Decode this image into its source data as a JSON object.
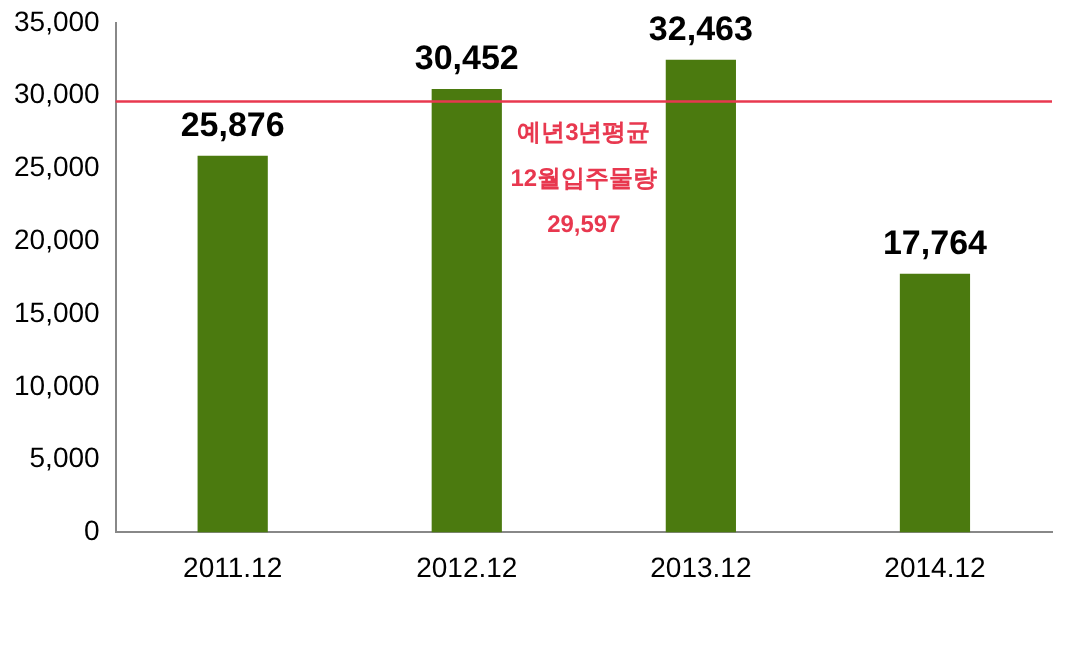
{
  "chart_data": {
    "type": "bar",
    "categories": [
      "2011.12",
      "2012.12",
      "2013.12",
      "2014.12"
    ],
    "values": [
      25876,
      30452,
      32463,
      17764
    ],
    "color": "#4b7a0f",
    "value_labels": [
      "25,876",
      "30,452",
      "32,463",
      "17,764"
    ],
    "ylim": [
      0,
      35000
    ],
    "yticks": [
      {
        "value": 0,
        "label": "0"
      },
      {
        "value": 5000,
        "label": "5,000"
      },
      {
        "value": 10000,
        "label": "10,000"
      },
      {
        "value": 15000,
        "label": "15,000"
      },
      {
        "value": 20000,
        "label": "20,000"
      },
      {
        "value": 25000,
        "label": "25,000"
      },
      {
        "value": 30000,
        "label": "30,000"
      },
      {
        "value": 35000,
        "label": "35,000"
      }
    ],
    "ref_lines": [
      {
        "axis": "y",
        "value": 29597,
        "label": "예년3년평균\n12월입주물량\n29,597",
        "color": "#e8384f"
      }
    ],
    "grid": false,
    "legend": false
  }
}
